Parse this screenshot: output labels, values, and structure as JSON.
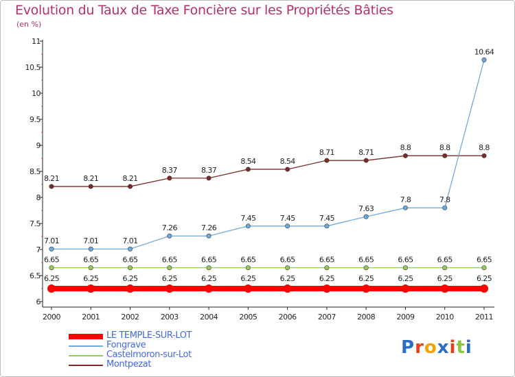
{
  "chart_data": {
    "type": "line",
    "title": "Evolution du Taux de Taxe Foncière sur les Propriétés Bâties",
    "subtitle": "(en %)",
    "x": [
      "2000",
      "2001",
      "2002",
      "2003",
      "2004",
      "2005",
      "2006",
      "2007",
      "2008",
      "2009",
      "2010",
      "2011"
    ],
    "ylim": [
      6,
      11
    ],
    "yticks": [
      "6",
      "6.5",
      "7",
      "7.5",
      "8",
      "8.5",
      "9",
      "9.5",
      "10",
      "10.5",
      "11"
    ],
    "grid": false,
    "legend_position": "bottom-left",
    "series": [
      {
        "name": "LE TEMPLE-SUR-LOT",
        "color": "#ff0000",
        "values": [
          6.25,
          6.25,
          6.25,
          6.25,
          6.25,
          6.25,
          6.25,
          6.25,
          6.25,
          6.25,
          6.25,
          6.25
        ],
        "labels": [
          "6.25",
          "6.25",
          "6.25",
          "6.25",
          "6.25",
          "6.25",
          "6.25",
          "6.25",
          "6.25",
          "6.25",
          "6.25",
          "6.25"
        ]
      },
      {
        "name": "Fongrave",
        "color": "#6fa8dc",
        "values": [
          7.01,
          7.01,
          7.01,
          7.26,
          7.26,
          7.45,
          7.45,
          7.45,
          7.63,
          7.8,
          7.8,
          10.64
        ],
        "labels": [
          "7.01",
          "7.01",
          "7.01",
          "7.26",
          "7.26",
          "7.45",
          "7.45",
          "7.45",
          "7.63",
          "7.8",
          "7.8",
          "10.64"
        ]
      },
      {
        "name": "Castelmoron-sur-Lot",
        "color": "#8fd14f",
        "values": [
          6.65,
          6.65,
          6.65,
          6.65,
          6.65,
          6.65,
          6.65,
          6.65,
          6.65,
          6.65,
          6.65,
          6.65
        ],
        "labels": [
          "6.65",
          "6.65",
          "6.65",
          "6.65",
          "6.65",
          "6.65",
          "6.65",
          "6.65",
          "6.65",
          "6.65",
          "6.65",
          "6.65"
        ]
      },
      {
        "name": "Montpezat",
        "color": "#7b2a2a",
        "values": [
          8.21,
          8.21,
          8.21,
          8.37,
          8.37,
          8.54,
          8.54,
          8.71,
          8.71,
          8.8,
          8.8,
          8.8
        ],
        "labels": [
          "8.21",
          "8.21",
          "8.21",
          "8.37",
          "8.37",
          "8.54",
          "8.54",
          "8.71",
          "8.71",
          "8.8",
          "8.8",
          "8.8"
        ]
      }
    ]
  },
  "logo": {
    "text": "Proxiti"
  }
}
